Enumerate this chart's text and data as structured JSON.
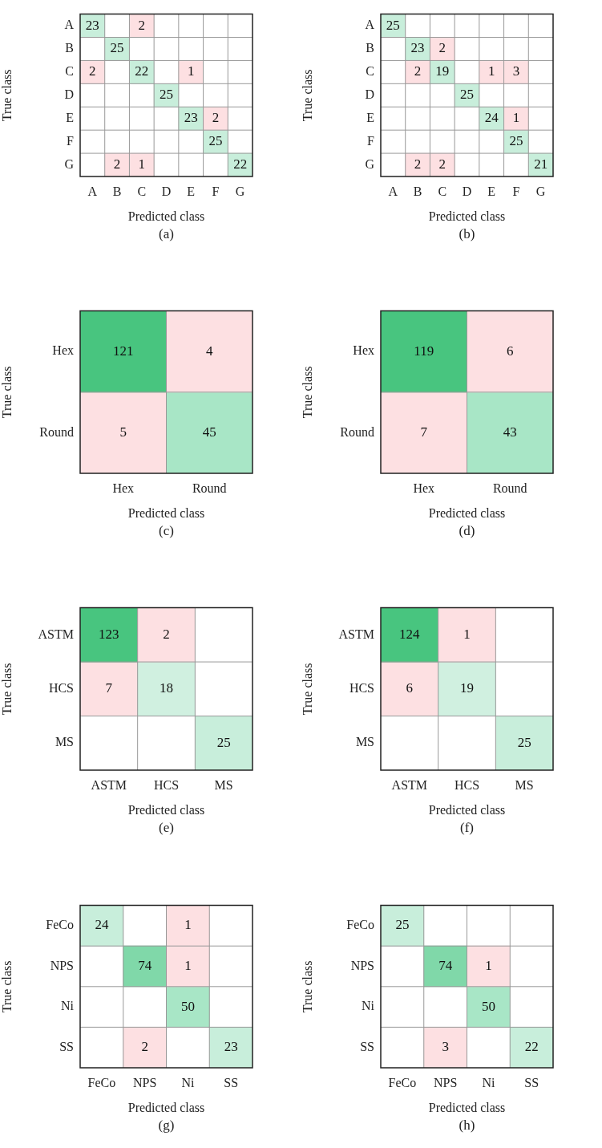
{
  "chart_data": [
    {
      "type": "heatmap",
      "categories": [
        "A",
        "B",
        "C",
        "D",
        "E",
        "F",
        "G"
      ],
      "y_categories": [
        "A",
        "B",
        "C",
        "D",
        "E",
        "F",
        "G"
      ],
      "xlabel": "Predicted class",
      "ylabel": "True class",
      "data_labels": true,
      "annotations": [
        "(a)"
      ],
      "cells": [
        [
          23,
          null,
          2,
          null,
          null,
          null,
          null
        ],
        [
          null,
          25,
          null,
          null,
          null,
          null,
          null
        ],
        [
          2,
          null,
          22,
          null,
          1,
          null,
          null
        ],
        [
          null,
          null,
          null,
          25,
          null,
          null,
          null
        ],
        [
          null,
          null,
          null,
          null,
          23,
          2,
          null
        ],
        [
          null,
          null,
          null,
          null,
          null,
          25,
          null
        ],
        [
          null,
          2,
          1,
          null,
          null,
          null,
          22
        ]
      ],
      "colors": [
        [
          "#c8eedb",
          null,
          "#fde0e2",
          null,
          null,
          null,
          null
        ],
        [
          null,
          "#c8eedb",
          null,
          null,
          null,
          null,
          null
        ],
        [
          "#fde0e2",
          null,
          "#c8eedb",
          null,
          "#fde0e2",
          null,
          null
        ],
        [
          null,
          null,
          null,
          "#c8eedb",
          null,
          null,
          null
        ],
        [
          null,
          null,
          null,
          null,
          "#c8eedb",
          "#fde0e2",
          null
        ],
        [
          null,
          null,
          null,
          null,
          null,
          "#c8eedb",
          null
        ],
        [
          null,
          "#fde0e2",
          "#fde0e2",
          null,
          null,
          null,
          "#c8eedb"
        ]
      ]
    },
    {
      "type": "heatmap",
      "categories": [
        "A",
        "B",
        "C",
        "D",
        "E",
        "F",
        "G"
      ],
      "y_categories": [
        "A",
        "B",
        "C",
        "D",
        "E",
        "F",
        "G"
      ],
      "xlabel": "Predicted class",
      "ylabel": "True class",
      "data_labels": true,
      "annotations": [
        "(b)"
      ],
      "cells": [
        [
          25,
          null,
          null,
          null,
          null,
          null,
          null
        ],
        [
          null,
          23,
          2,
          null,
          null,
          null,
          null
        ],
        [
          null,
          2,
          19,
          null,
          1,
          3,
          null
        ],
        [
          null,
          null,
          null,
          25,
          null,
          null,
          null
        ],
        [
          null,
          null,
          null,
          null,
          24,
          1,
          null
        ],
        [
          null,
          null,
          null,
          null,
          null,
          25,
          null
        ],
        [
          null,
          2,
          2,
          null,
          null,
          null,
          21
        ]
      ],
      "colors": [
        [
          "#c8eedb",
          null,
          null,
          null,
          null,
          null,
          null
        ],
        [
          null,
          "#c8eedb",
          "#fde0e2",
          null,
          null,
          null,
          null
        ],
        [
          null,
          "#fde0e2",
          "#c8eedb",
          null,
          "#fde0e2",
          "#fde0e2",
          null
        ],
        [
          null,
          null,
          null,
          "#c8eedb",
          null,
          null,
          null
        ],
        [
          null,
          null,
          null,
          null,
          "#c8eedb",
          "#fde0e2",
          null
        ],
        [
          null,
          null,
          null,
          null,
          null,
          "#c8eedb",
          null
        ],
        [
          null,
          "#fde0e2",
          "#fde0e2",
          null,
          null,
          null,
          "#c8eedb"
        ]
      ]
    },
    {
      "type": "heatmap",
      "categories": [
        "Hex",
        "Round"
      ],
      "y_categories": [
        "Hex",
        "Round"
      ],
      "xlabel": "Predicted class",
      "ylabel": "True class",
      "data_labels": true,
      "annotations": [
        "(c)"
      ],
      "cells": [
        [
          121,
          4
        ],
        [
          5,
          45
        ]
      ],
      "colors": [
        [
          "#48c57f",
          "#fde0e2"
        ],
        [
          "#fde0e2",
          "#a8e6c6"
        ]
      ]
    },
    {
      "type": "heatmap",
      "categories": [
        "Hex",
        "Round"
      ],
      "y_categories": [
        "Hex",
        "Round"
      ],
      "xlabel": "Predicted class",
      "ylabel": "True class",
      "data_labels": true,
      "annotations": [
        "(d)"
      ],
      "cells": [
        [
          119,
          6
        ],
        [
          7,
          43
        ]
      ],
      "colors": [
        [
          "#48c57f",
          "#fde0e2"
        ],
        [
          "#fde0e2",
          "#a8e6c6"
        ]
      ]
    },
    {
      "type": "heatmap",
      "categories": [
        "ASTM",
        "HCS",
        "MS"
      ],
      "y_categories": [
        "ASTM",
        "HCS",
        "MS"
      ],
      "xlabel": "Predicted class",
      "ylabel": "True class",
      "data_labels": true,
      "annotations": [
        "(e)"
      ],
      "cells": [
        [
          123,
          2,
          null
        ],
        [
          7,
          18,
          null
        ],
        [
          null,
          null,
          25
        ]
      ],
      "colors": [
        [
          "#48c57f",
          "#fde0e2",
          null
        ],
        [
          "#fde0e2",
          "#d0f0e0",
          null
        ],
        [
          null,
          null,
          "#c8eedb"
        ]
      ]
    },
    {
      "type": "heatmap",
      "categories": [
        "ASTM",
        "HCS",
        "MS"
      ],
      "y_categories": [
        "ASTM",
        "HCS",
        "MS"
      ],
      "xlabel": "Predicted class",
      "ylabel": "True class",
      "data_labels": true,
      "annotations": [
        "(f)"
      ],
      "cells": [
        [
          124,
          1,
          null
        ],
        [
          6,
          19,
          null
        ],
        [
          null,
          null,
          25
        ]
      ],
      "colors": [
        [
          "#48c57f",
          "#fde0e2",
          null
        ],
        [
          "#fde0e2",
          "#d0f0e0",
          null
        ],
        [
          null,
          null,
          "#c8eedb"
        ]
      ]
    },
    {
      "type": "heatmap",
      "categories": [
        "FeCo",
        "NPS",
        "Ni",
        "SS"
      ],
      "y_categories": [
        "FeCo",
        "NPS",
        "Ni",
        "SS"
      ],
      "xlabel": "Predicted class",
      "ylabel": "True class",
      "data_labels": true,
      "annotations": [
        "(g)"
      ],
      "cells": [
        [
          24,
          null,
          1,
          null
        ],
        [
          null,
          74,
          1,
          null
        ],
        [
          null,
          null,
          50,
          null
        ],
        [
          null,
          2,
          null,
          23
        ]
      ],
      "colors": [
        [
          "#c8eedb",
          null,
          "#fde0e2",
          null
        ],
        [
          null,
          "#80d8a9",
          "#fde0e2",
          null
        ],
        [
          null,
          null,
          "#a8e6c6",
          null
        ],
        [
          null,
          "#fde0e2",
          null,
          "#c8eedb"
        ]
      ]
    },
    {
      "type": "heatmap",
      "categories": [
        "FeCo",
        "NPS",
        "Ni",
        "SS"
      ],
      "y_categories": [
        "FeCo",
        "NPS",
        "Ni",
        "SS"
      ],
      "xlabel": "Predicted class",
      "ylabel": "True class",
      "data_labels": true,
      "annotations": [
        "(h)"
      ],
      "cells": [
        [
          25,
          null,
          null,
          null
        ],
        [
          null,
          74,
          1,
          null
        ],
        [
          null,
          null,
          50,
          null
        ],
        [
          null,
          3,
          null,
          22
        ]
      ],
      "colors": [
        [
          "#c8eedb",
          null,
          null,
          null
        ],
        [
          null,
          "#80d8a9",
          "#fde0e2",
          null
        ],
        [
          null,
          null,
          "#a8e6c6",
          null
        ],
        [
          null,
          "#fde0e2",
          null,
          "#c8eedb"
        ]
      ]
    }
  ]
}
